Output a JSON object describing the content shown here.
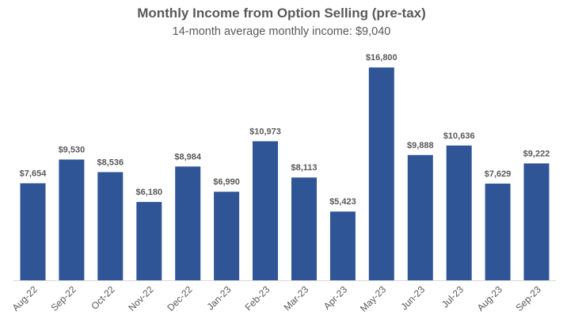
{
  "chart_data": {
    "type": "bar",
    "title": "Monthly Income from Option Selling (pre-tax)",
    "subtitle": "14-month average monthly income: $9,040",
    "categories": [
      "Aug-22",
      "Sep-22",
      "Oct-22",
      "Nov-22",
      "Dec-22",
      "Jan-23",
      "Feb-23",
      "Mar-23",
      "Apr-23",
      "May-23",
      "Jun-23",
      "Jul-23",
      "Aug-23",
      "Sep-23"
    ],
    "values": [
      7654,
      9530,
      8536,
      6180,
      8984,
      6990,
      10973,
      8113,
      5423,
      16800,
      9888,
      10636,
      7629,
      9222
    ],
    "data_labels": [
      "$7,654",
      "$9,530",
      "$8,536",
      "$6,180",
      "$8,984",
      "$6,990",
      "$10,973",
      "$8,113",
      "$5,423",
      "$16,800",
      "$9,888",
      "$10,636",
      "$7,629",
      "$9,222"
    ],
    "ylim": [
      0,
      18000
    ],
    "grid": false,
    "bar_color": "#2F5597",
    "text_color": "#595959",
    "axis_color": "#D9D9D9"
  }
}
